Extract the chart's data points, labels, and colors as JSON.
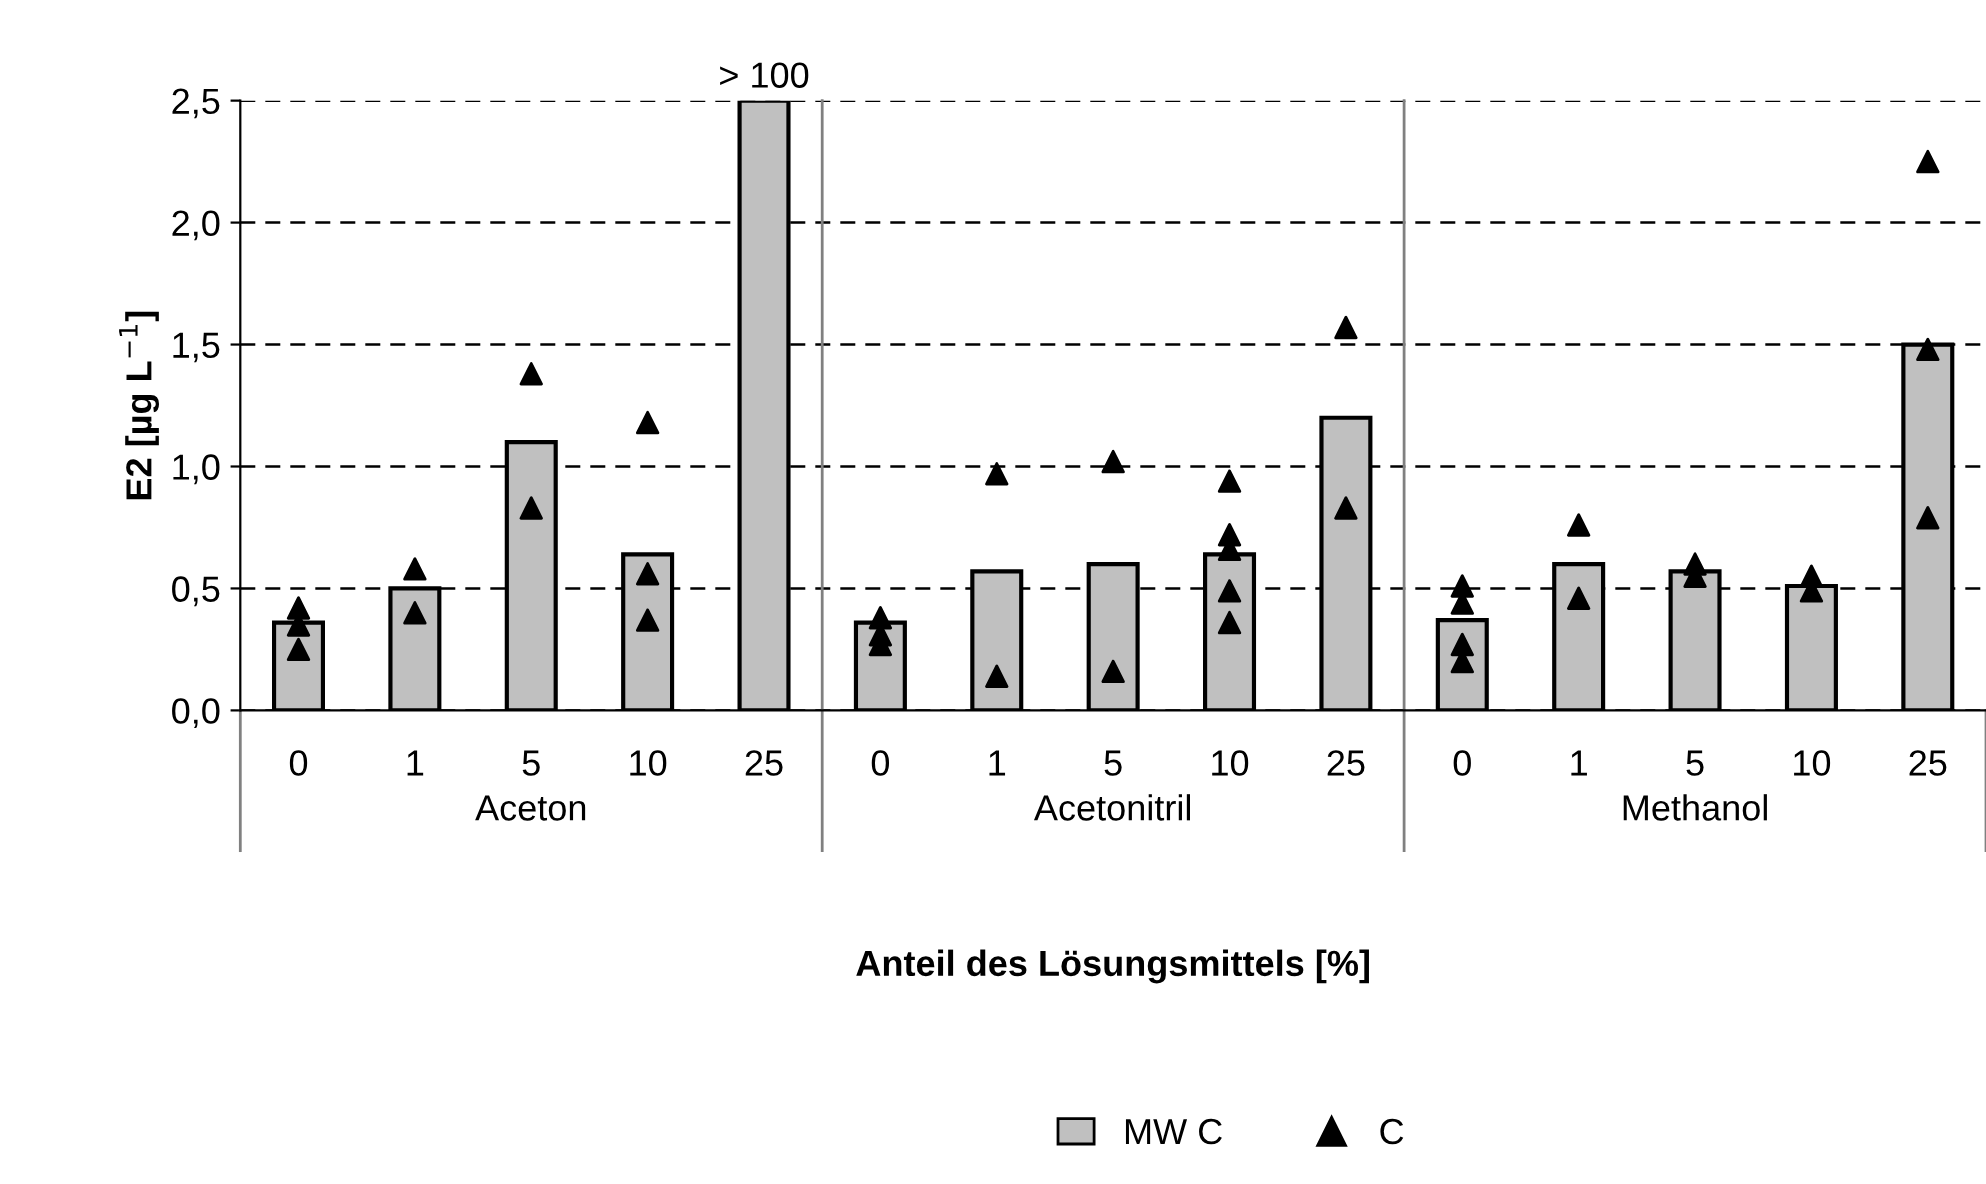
{
  "chart_data": {
    "type": "bar",
    "xlabel": "Anteil des Lösungsmittels [%]",
    "ylabel": "E2 [µg L$^{−1}$]",
    "categories": [
      "0",
      "1",
      "5",
      "10",
      "25",
      "0",
      "1",
      "5",
      "10",
      "25",
      "0",
      "1",
      "5",
      "10",
      "25"
    ],
    "annotations": [
      "Aceton",
      "Acetonitril",
      "Methanol"
    ],
    "series": [
      {
        "name": "MW C",
        "color": "#c0c0c0",
        "values": [
          0.36,
          0.5,
          1.1,
          0.64,
          2.5,
          0.36,
          0.57,
          0.6,
          0.64,
          1.2,
          0.37,
          0.6,
          0.57,
          0.51,
          1.5
        ],
        "value_labels": [
          null,
          null,
          null,
          null,
          "> 100",
          null,
          null,
          null,
          null,
          null,
          null,
          null,
          null,
          null,
          null
        ]
      },
      {
        "name": "C",
        "type": "scatter",
        "color": "#000000",
        "marker": "triangle",
        "values": [
          0.42,
          0.58,
          1.38,
          1.18,
          null,
          0.38,
          0.97,
          1.02,
          0.94,
          1.57,
          0.51,
          0.76,
          0.6,
          0.55,
          2.25
        ]
      },
      {
        "type": "scatter",
        "color": "#000000",
        "marker": "triangle",
        "values": [
          0.35,
          0.4,
          0.83,
          0.56,
          null,
          0.31,
          0.14,
          0.16,
          0.72,
          0.83,
          0.44,
          0.46,
          0.55,
          0.49,
          1.48
        ]
      },
      {
        "type": "scatter",
        "color": "#000000",
        "marker": "triangle",
        "values": [
          0.25,
          null,
          null,
          0.37,
          null,
          0.27,
          null,
          null,
          0.66,
          null,
          0.27,
          null,
          null,
          null,
          0.79
        ]
      },
      {
        "type": "scatter",
        "color": "#000000",
        "marker": "triangle",
        "values": [
          null,
          null,
          null,
          null,
          null,
          null,
          null,
          null,
          0.49,
          null,
          0.2,
          null,
          null,
          null,
          null
        ]
      },
      {
        "type": "scatter",
        "color": "#000000",
        "marker": "triangle",
        "values": [
          null,
          null,
          null,
          null,
          null,
          null,
          null,
          null,
          0.36,
          null,
          null,
          null,
          null,
          null,
          null
        ]
      }
    ],
    "ylim": [
      0,
      2.5
    ],
    "yticks": [
      {
        "value": 0,
        "label": "0,0"
      },
      {
        "value": 0.5,
        "label": "0,5"
      },
      {
        "value": 1.0,
        "label": "1,0"
      },
      {
        "value": 1.5,
        "label": "1,5"
      },
      {
        "value": 2.0,
        "label": "2,0"
      },
      {
        "value": 2.5,
        "label": "2,5"
      }
    ],
    "grid": "y",
    "legend": "bottom"
  }
}
